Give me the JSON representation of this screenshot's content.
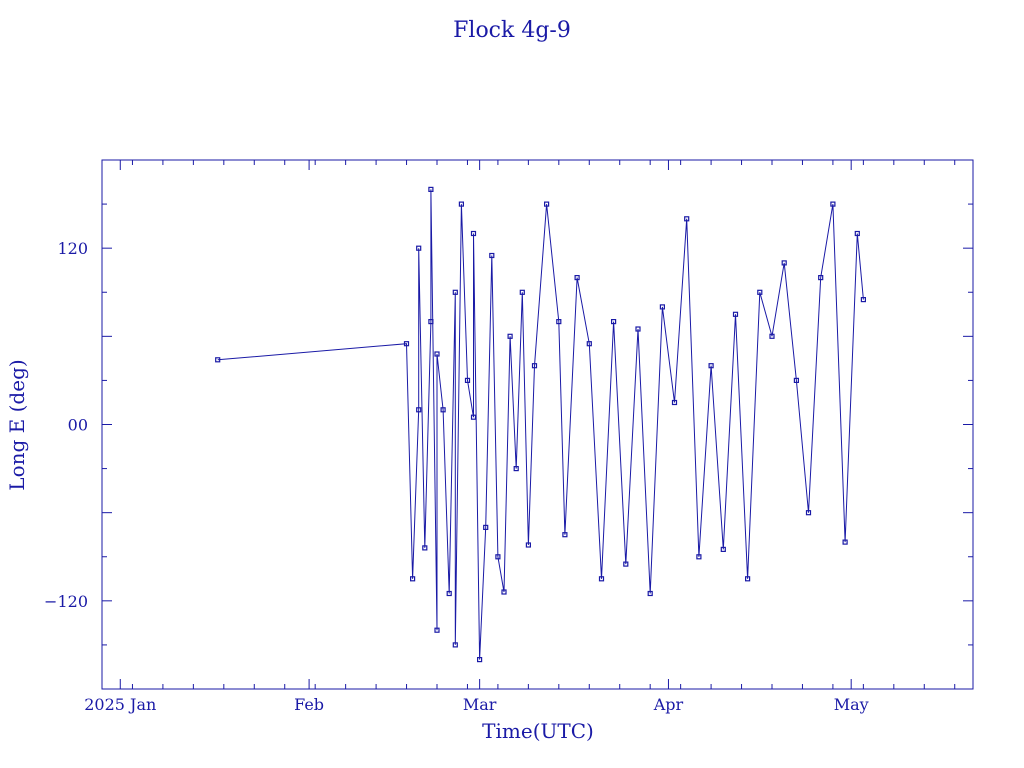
{
  "chart_data": {
    "type": "scatter",
    "title": "Flock 4g-9",
    "xlabel": "Time(UTC)",
    "ylabel": "Long E (deg)",
    "color": "#1a1aa6",
    "xlim": [
      "2024-12-29",
      "2025-05-21"
    ],
    "ylim": [
      -180,
      180
    ],
    "y_ticks": [
      -120,
      0,
      120
    ],
    "y_tick_labels": [
      "−120",
      "00",
      "120"
    ],
    "x_tick_labels": [
      {
        "date": "2025-01-01",
        "label": "2025 Jan"
      },
      {
        "date": "2025-02-01",
        "label": "Feb"
      },
      {
        "date": "2025-03-01",
        "label": "Mar"
      },
      {
        "date": "2025-04-01",
        "label": "Apr"
      },
      {
        "date": "2025-05-01",
        "label": "May"
      }
    ],
    "grid": false,
    "series": [
      {
        "x": [
          "2025-01-17",
          "2025-02-17",
          "2025-02-18",
          "2025-02-19",
          "2025-02-19",
          "2025-02-20",
          "2025-02-21",
          "2025-02-21",
          "2025-02-22",
          "2025-02-22",
          "2025-02-23",
          "2025-02-24",
          "2025-02-25",
          "2025-02-25",
          "2025-02-26",
          "2025-02-27",
          "2025-02-28",
          "2025-02-28",
          "2025-03-01",
          "2025-03-02",
          "2025-03-03",
          "2025-03-04",
          "2025-03-05",
          "2025-03-06",
          "2025-03-07",
          "2025-03-08",
          "2025-03-09",
          "2025-03-10",
          "2025-03-12",
          "2025-03-14",
          "2025-03-15",
          "2025-03-17",
          "2025-03-19",
          "2025-03-21",
          "2025-03-23",
          "2025-03-25",
          "2025-03-27",
          "2025-03-29",
          "2025-03-31",
          "2025-04-02",
          "2025-04-04",
          "2025-04-06",
          "2025-04-08",
          "2025-04-10",
          "2025-04-12",
          "2025-04-14",
          "2025-04-16",
          "2025-04-18",
          "2025-04-20",
          "2025-04-22",
          "2025-04-24",
          "2025-04-26",
          "2025-04-28",
          "2025-04-30",
          "2025-05-02",
          "2025-05-03"
        ],
        "y": [
          44,
          55,
          -105,
          10,
          120,
          -84,
          70,
          160,
          -140,
          48,
          10,
          -115,
          90,
          -150,
          150,
          30,
          5,
          130,
          -160,
          -70,
          115,
          -90,
          -114,
          60,
          -30,
          90,
          -82,
          40,
          150,
          70,
          -75,
          100,
          55,
          -105,
          70,
          -95,
          65,
          -115,
          80,
          15,
          140,
          -90,
          40,
          -85,
          75,
          -105,
          90,
          60,
          110,
          30,
          -60,
          100,
          150,
          -80,
          130,
          85
        ]
      }
    ]
  }
}
